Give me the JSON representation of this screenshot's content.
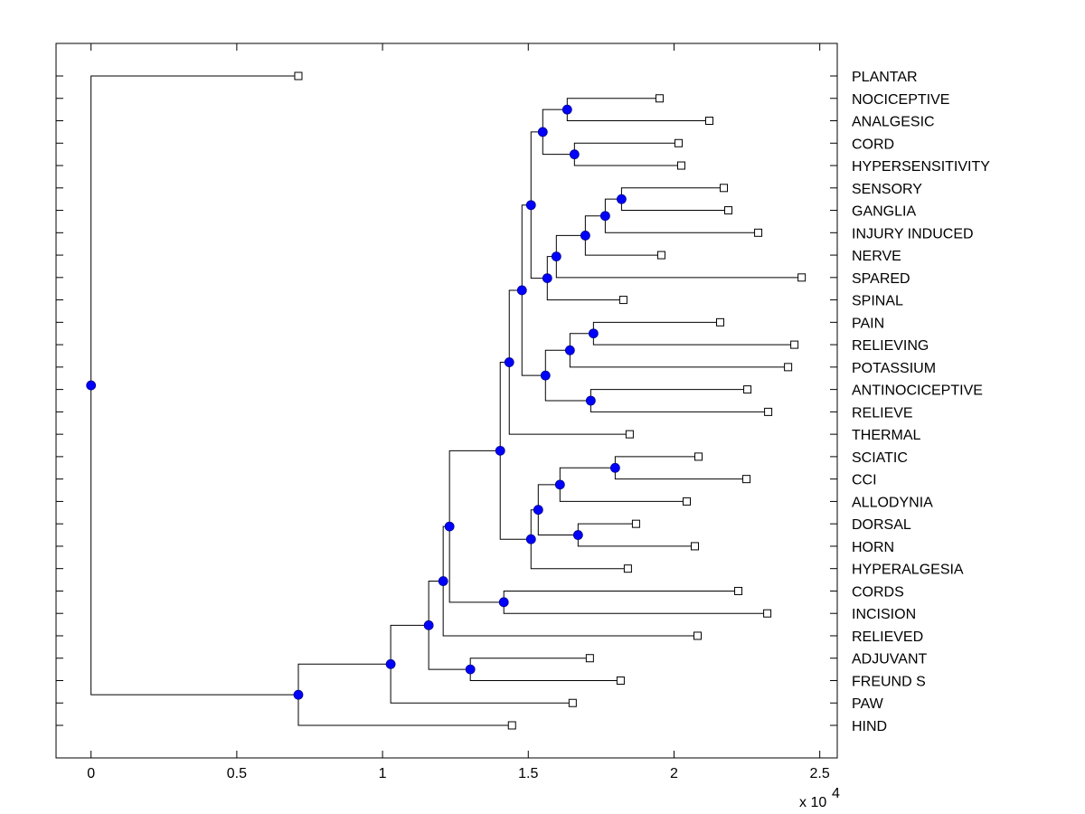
{
  "chart_data": {
    "type": "dendrogram",
    "title": "",
    "xlabel": "",
    "ylabel": "",
    "x_exponent_label": "x 10",
    "x_exponent": "4",
    "xlim": [
      -1200,
      25600
    ],
    "x_ticks": [
      0,
      5000,
      10000,
      15000,
      20000,
      25000
    ],
    "x_tick_labels": [
      "0",
      "0.5",
      "1",
      "1.5",
      "2",
      "2.5"
    ],
    "grid": false,
    "node_color": "#0000ff",
    "leaves": [
      {
        "label": "PLANTAR",
        "x": 7112
      },
      {
        "label": "NOCICEPTIVE",
        "x": 19503
      },
      {
        "label": "ANALGESIC",
        "x": 21211
      },
      {
        "label": "CORD",
        "x": 20155
      },
      {
        "label": "HYPERSENSITIVITY",
        "x": 20248
      },
      {
        "label": "SENSORY",
        "x": 21708
      },
      {
        "label": "GANGLIA",
        "x": 21863
      },
      {
        "label": "INJURY INDUCED",
        "x": 22888
      },
      {
        "label": "NERVE",
        "x": 19565
      },
      {
        "label": "SPARED",
        "x": 24379
      },
      {
        "label": "SPINAL",
        "x": 18261
      },
      {
        "label": "PAIN",
        "x": 21584
      },
      {
        "label": "RELIEVING",
        "x": 24130
      },
      {
        "label": "POTASSIUM",
        "x": 23913
      },
      {
        "label": "ANTINOCICEPTIVE",
        "x": 22516
      },
      {
        "label": "RELIEVE",
        "x": 23230
      },
      {
        "label": "THERMAL",
        "x": 18478
      },
      {
        "label": "SCIATIC",
        "x": 20839
      },
      {
        "label": "CCI",
        "x": 22484
      },
      {
        "label": "ALLODYNIA",
        "x": 20435
      },
      {
        "label": "DORSAL",
        "x": 18696
      },
      {
        "label": "HORN",
        "x": 20714
      },
      {
        "label": "HYPERALGESIA",
        "x": 18416
      },
      {
        "label": "CORDS",
        "x": 22205
      },
      {
        "label": "INCISION",
        "x": 23199
      },
      {
        "label": "RELIEVED",
        "x": 20807
      },
      {
        "label": "ADJUVANT",
        "x": 17112
      },
      {
        "label": "FREUND S",
        "x": 18168
      },
      {
        "label": "PAW",
        "x": 16522
      },
      {
        "label": "HIND",
        "x": 14441
      }
    ],
    "nodes": [
      {
        "id": "n_root",
        "x": 0,
        "children": [
          "L0",
          "n_a"
        ]
      },
      {
        "id": "n_a",
        "x": 7112,
        "children": [
          "n_b",
          "L29"
        ]
      },
      {
        "id": "n_b",
        "x": 10280,
        "children": [
          "n_c",
          "L28"
        ]
      },
      {
        "id": "n_c",
        "x": 11584,
        "children": [
          "n_d",
          "n_e"
        ]
      },
      {
        "id": "n_e",
        "x": 13012,
        "children": [
          "L26",
          "L27"
        ]
      },
      {
        "id": "n_d",
        "x": 12081,
        "children": [
          "n_f",
          "L25"
        ]
      },
      {
        "id": "n_f",
        "x": 12298,
        "children": [
          "n_g",
          "n_h"
        ]
      },
      {
        "id": "n_h",
        "x": 14161,
        "children": [
          "L23",
          "L24"
        ]
      },
      {
        "id": "n_g",
        "x": 14037,
        "children": [
          "n_i",
          "n_j"
        ]
      },
      {
        "id": "n_i",
        "x": 14348,
        "children": [
          "n_k",
          "L16"
        ]
      },
      {
        "id": "n_k",
        "x": 14783,
        "children": [
          "n_l",
          "n_s"
        ]
      },
      {
        "id": "n_l",
        "x": 15093,
        "children": [
          "n_n",
          "n_o"
        ]
      },
      {
        "id": "n_n",
        "x": 15497,
        "children": [
          "n_n1",
          "n_n2"
        ]
      },
      {
        "id": "n_n1",
        "x": 16335,
        "children": [
          "L1",
          "L2"
        ]
      },
      {
        "id": "n_n2",
        "x": 16584,
        "children": [
          "L3",
          "L4"
        ]
      },
      {
        "id": "n_o",
        "x": 15652,
        "children": [
          "n_p",
          "L10"
        ]
      },
      {
        "id": "n_p",
        "x": 15963,
        "children": [
          "n_q",
          "L9"
        ]
      },
      {
        "id": "n_q",
        "x": 16957,
        "children": [
          "n_r",
          "L8"
        ]
      },
      {
        "id": "n_r",
        "x": 17640,
        "children": [
          "n_r1",
          "L7"
        ]
      },
      {
        "id": "n_r1",
        "x": 18199,
        "children": [
          "L5",
          "L6"
        ]
      },
      {
        "id": "n_s",
        "x": 15590,
        "children": [
          "n_t",
          "n_s2"
        ]
      },
      {
        "id": "n_t",
        "x": 16429,
        "children": [
          "n_t1",
          "L13"
        ]
      },
      {
        "id": "n_t1",
        "x": 17236,
        "children": [
          "L11",
          "L12"
        ]
      },
      {
        "id": "n_s2",
        "x": 17143,
        "children": [
          "L14",
          "L15"
        ]
      },
      {
        "id": "n_j",
        "x": 15093,
        "children": [
          "n_u",
          "L22"
        ]
      },
      {
        "id": "n_u",
        "x": 15342,
        "children": [
          "n_v",
          "n_u2"
        ]
      },
      {
        "id": "n_v",
        "x": 16087,
        "children": [
          "n_v1",
          "L19"
        ]
      },
      {
        "id": "n_v1",
        "x": 17981,
        "children": [
          "L17",
          "L18"
        ]
      },
      {
        "id": "n_u2",
        "x": 16708,
        "children": [
          "L20",
          "L21"
        ]
      }
    ]
  }
}
